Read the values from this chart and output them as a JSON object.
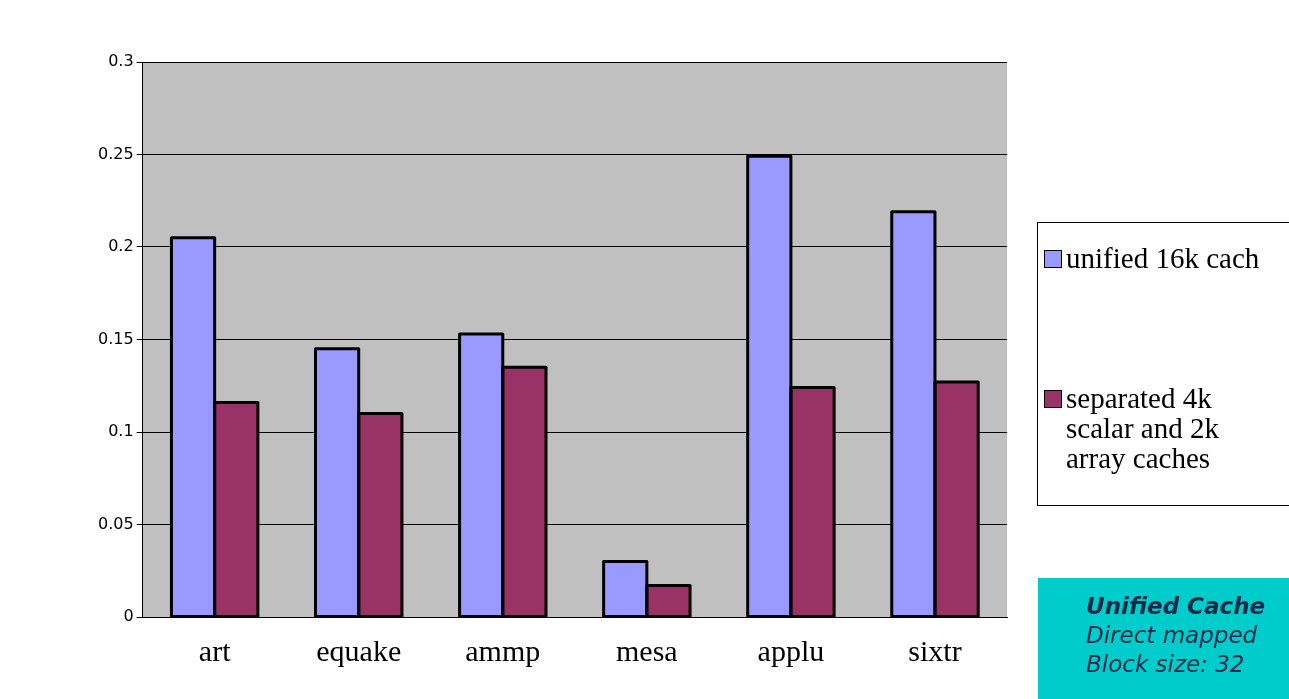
{
  "chart_data": {
    "type": "bar",
    "categories": [
      "art",
      "equake",
      "ammp",
      "mesa",
      "applu",
      "sixtr"
    ],
    "series": [
      {
        "name": "unified 16k cach",
        "color": "#9999ff",
        "values": [
          0.205,
          0.145,
          0.153,
          0.03,
          0.249,
          0.219
        ]
      },
      {
        "name": "separated 4k scalar and 2k array caches",
        "color": "#993366",
        "values": [
          0.116,
          0.11,
          0.135,
          0.017,
          0.124,
          0.127
        ]
      }
    ],
    "ylim": [
      0,
      0.3
    ],
    "yticks": [
      0,
      0.05,
      0.1,
      0.15,
      0.2,
      0.25,
      0.3
    ],
    "grid": "y",
    "legend": "right",
    "annotations": [
      "Unified Cache",
      "Direct mapped",
      "Block size: 32"
    ]
  }
}
